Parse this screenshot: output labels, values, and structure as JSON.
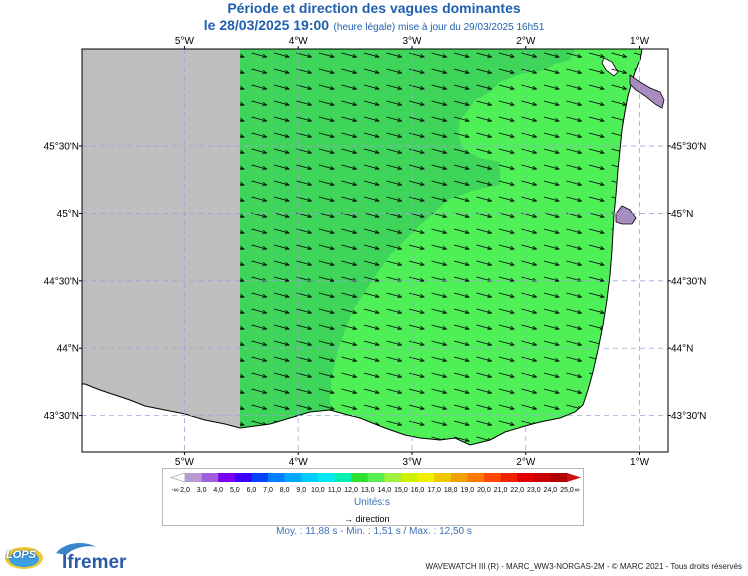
{
  "header": {
    "title": "Période et direction des vagues dominantes",
    "date": "le 28/03/2025 19:00",
    "note": "(heure légale) mise à jour du 29/03/2025 16h51"
  },
  "map": {
    "lon_labels": [
      "5°W",
      "4°W",
      "3°W",
      "2°W",
      "1°W"
    ],
    "lon_values": [
      -5,
      -4,
      -3,
      -2,
      -1
    ],
    "lat_labels": [
      "45°30'N",
      "45°N",
      "44°30'N",
      "44°N",
      "43°30'N"
    ],
    "lat_values": [
      45.5,
      45,
      44.5,
      44,
      43.5
    ],
    "lon_range": [
      -5.9,
      -0.75
    ],
    "lat_range": [
      43.23,
      46.22
    ],
    "direction_deg_from_east": -15,
    "zones": [
      {
        "name": "no-data",
        "color": "#bebebe"
      },
      {
        "name": "period-12",
        "color": "#3fd45a"
      },
      {
        "name": "period-13",
        "color": "#4ff057"
      },
      {
        "name": "land",
        "color": "#ffffff"
      },
      {
        "name": "gironde-estuary",
        "color": "#a88cc0"
      }
    ]
  },
  "legend": {
    "low_label": "-∞",
    "high_label": "∞",
    "labels": [
      "2,0",
      "3,0",
      "4,0",
      "5,0",
      "6,0",
      "7,0",
      "8,0",
      "9,0",
      "10,0",
      "11,0",
      "12,0",
      "13,0",
      "14,0",
      "15,0",
      "16,0",
      "17,0",
      "18,0",
      "19,0",
      "20,0",
      "21,0",
      "22,0",
      "23,0",
      "24,0",
      "25,0"
    ],
    "colors": [
      "#b89ad0",
      "#a060e0",
      "#7a00f0",
      "#3c00ff",
      "#0044ff",
      "#0080ff",
      "#00a8ff",
      "#00ccff",
      "#00e8f0",
      "#00f0b0",
      "#30e030",
      "#58f050",
      "#a0f040",
      "#d0f000",
      "#f0f000",
      "#f0c800",
      "#f0a000",
      "#ff7800",
      "#ff4800",
      "#f02000",
      "#e00000",
      "#c80000",
      "#b00000"
    ],
    "end_colors": {
      "low": "#ffffff",
      "high": "#d01010"
    },
    "units": "Unités:s",
    "direction_label": "direction"
  },
  "stats": {
    "text": "Moy. : 11,88 s   -   Min. : 1,51 s / Max. : 12,50 s"
  },
  "logos": {
    "lops": "LOPS",
    "ifremer": "Ifremer"
  },
  "credit": "WAVEWATCH III (R) - MARC_WW3-NORGAS-2M - © MARC 2021 - Tous droits réservés"
}
